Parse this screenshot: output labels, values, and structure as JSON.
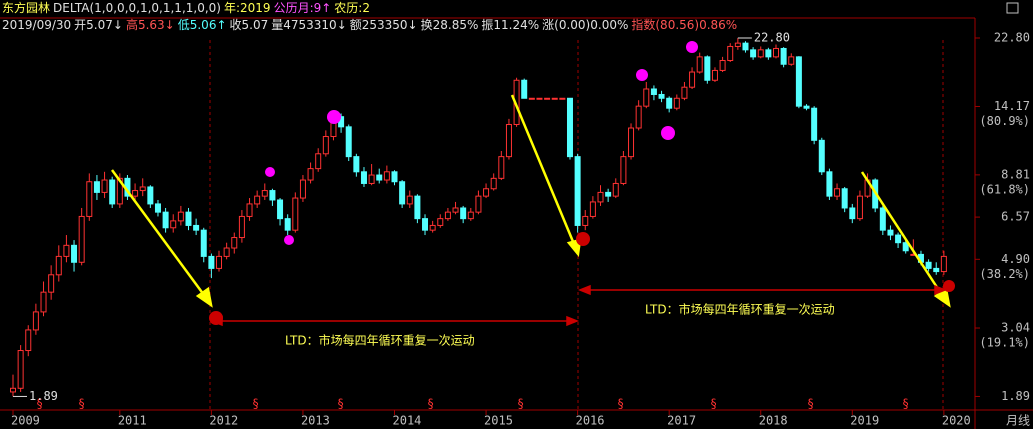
{
  "header": {
    "line1": [
      {
        "text": "东方园林",
        "color": "#ffff54"
      },
      {
        "text": "DELTA(1,0,0,0,1,0,1,1,1,0,0)",
        "color": "#e0e0e0"
      },
      {
        "text": "年:2019",
        "color": "#ffff54"
      },
      {
        "text": "公历月:9↑",
        "color": "#ff54ff"
      },
      {
        "text": "农历:2",
        "color": "#ffff54"
      }
    ],
    "line2": [
      {
        "text": "2019/09/30",
        "color": "#e0e0e0"
      },
      {
        "text": "开5.07↓",
        "color": "#e0e0e0"
      },
      {
        "text": "高5.63↓",
        "color": "#ff5454"
      },
      {
        "text": "低5.06↑",
        "color": "#54ffff"
      },
      {
        "text": "收5.07",
        "color": "#e0e0e0"
      },
      {
        "text": "量4753310↓",
        "color": "#e0e0e0"
      },
      {
        "text": "额253350↓",
        "color": "#e0e0e0"
      },
      {
        "text": "换28.85%",
        "color": "#e0e0e0"
      },
      {
        "text": "振11.24%",
        "color": "#e0e0e0"
      },
      {
        "text": "涨(0.00)0.00%",
        "color": "#e0e0e0"
      },
      {
        "text": "指数(80.56)0.86%",
        "color": "#ff5454"
      }
    ]
  },
  "chart_data": {
    "type": "candlestick",
    "log_scale": true,
    "up_color": "#ff3232",
    "down_color": "#54ffff",
    "ylim": [
      1.72,
      26.2
    ],
    "yticks": [
      {
        "value": 22.8,
        "label": "22.80"
      },
      14.17,
      8.81,
      6.57,
      {
        "value": 4.9,
        "label": "4.90"
      },
      3.04,
      1.89
    ],
    "fib_labels": [
      {
        "value": 14.17,
        "label": "(80.9%)"
      },
      {
        "value": 8.81,
        "label": "(61.8%)"
      },
      {
        "value": 4.9,
        "label": "(38.2%)"
      },
      {
        "value": 3.04,
        "label": "(19.1%)"
      }
    ],
    "max_label": {
      "value": 22.8,
      "label": "22.80"
    },
    "min_label": 1.89,
    "period_label": "月线",
    "dividend_symbol": "§",
    "annotations": [
      {
        "text": "LTD：市场每四年循环重复一次运动"
      },
      {
        "text": "LTD：市场每四年循环重复一次运动"
      }
    ],
    "categories": [
      "2009",
      null,
      null,
      null,
      null,
      null,
      null,
      null,
      null,
      null,
      null,
      null,
      null,
      null,
      "2011",
      null,
      null,
      null,
      null,
      null,
      null,
      null,
      null,
      null,
      null,
      null,
      "2012",
      null,
      null,
      null,
      null,
      null,
      null,
      null,
      null,
      null,
      null,
      null,
      "2013",
      null,
      null,
      null,
      null,
      null,
      null,
      null,
      null,
      null,
      null,
      null,
      "2014",
      null,
      null,
      null,
      null,
      null,
      null,
      null,
      null,
      null,
      null,
      null,
      "2015",
      null,
      null,
      null,
      null,
      null,
      null,
      null,
      null,
      null,
      null,
      null,
      "2016",
      null,
      null,
      null,
      null,
      null,
      null,
      null,
      null,
      null,
      null,
      null,
      "2017",
      null,
      null,
      null,
      null,
      null,
      null,
      null,
      null,
      null,
      null,
      null,
      "2018",
      null,
      null,
      null,
      null,
      null,
      null,
      null,
      null,
      null,
      null,
      null,
      "2019",
      null,
      null,
      null,
      null,
      null,
      null,
      null,
      null,
      null,
      null,
      null,
      "2020"
    ],
    "ohlc": [
      [
        1.95,
        2.2,
        1.89,
        2.0
      ],
      [
        2.0,
        2.7,
        1.95,
        2.6
      ],
      [
        2.6,
        3.1,
        2.5,
        3.0
      ],
      [
        3.0,
        3.6,
        2.9,
        3.4
      ],
      [
        3.4,
        4.2,
        3.3,
        3.9
      ],
      [
        3.9,
        4.7,
        3.7,
        4.4
      ],
      [
        4.4,
        5.4,
        4.2,
        5.0
      ],
      [
        5.0,
        5.8,
        4.8,
        5.4
      ],
      [
        5.4,
        5.6,
        4.5,
        4.8
      ],
      [
        4.8,
        7.0,
        4.7,
        6.6
      ],
      [
        6.6,
        8.9,
        6.4,
        8.4
      ],
      [
        8.4,
        8.8,
        7.4,
        7.8
      ],
      [
        7.8,
        9.0,
        7.5,
        8.5
      ],
      [
        8.5,
        8.7,
        7.0,
        7.2
      ],
      [
        7.2,
        8.9,
        7.0,
        8.6
      ],
      [
        8.6,
        8.8,
        7.4,
        7.6
      ],
      [
        7.6,
        8.3,
        7.3,
        7.9
      ],
      [
        7.9,
        8.6,
        7.6,
        8.1
      ],
      [
        8.1,
        8.2,
        7.0,
        7.2
      ],
      [
        7.2,
        7.4,
        6.6,
        6.8
      ],
      [
        6.8,
        7.0,
        5.9,
        6.1
      ],
      [
        6.1,
        6.7,
        5.9,
        6.4
      ],
      [
        6.4,
        7.1,
        6.2,
        6.8
      ],
      [
        6.8,
        7.0,
        6.0,
        6.2
      ],
      [
        6.2,
        6.5,
        5.8,
        6.0
      ],
      [
        6.0,
        6.1,
        4.8,
        5.0
      ],
      [
        5.0,
        5.1,
        4.3,
        4.6
      ],
      [
        4.6,
        5.2,
        4.5,
        5.0
      ],
      [
        5.0,
        5.5,
        4.9,
        5.3
      ],
      [
        5.3,
        5.9,
        5.1,
        5.7
      ],
      [
        5.7,
        6.9,
        5.5,
        6.6
      ],
      [
        6.6,
        7.5,
        6.4,
        7.2
      ],
      [
        7.2,
        7.9,
        7.0,
        7.6
      ],
      [
        7.6,
        8.3,
        7.4,
        7.9
      ],
      [
        7.9,
        8.0,
        7.1,
        7.4
      ],
      [
        7.4,
        7.5,
        6.2,
        6.5
      ],
      [
        6.5,
        6.7,
        5.8,
        6.0
      ],
      [
        6.0,
        7.8,
        5.9,
        7.5
      ],
      [
        7.5,
        8.8,
        7.3,
        8.5
      ],
      [
        8.5,
        9.6,
        8.3,
        9.2
      ],
      [
        9.2,
        10.6,
        9.0,
        10.2
      ],
      [
        10.2,
        12.0,
        10.0,
        11.5
      ],
      [
        11.5,
        13.8,
        11.2,
        13.2
      ],
      [
        13.2,
        13.5,
        11.8,
        12.3
      ],
      [
        12.3,
        12.5,
        9.7,
        10.0
      ],
      [
        10.0,
        10.2,
        8.7,
        9.0
      ],
      [
        9.0,
        9.3,
        8.1,
        8.3
      ],
      [
        8.3,
        9.5,
        8.2,
        8.8
      ],
      [
        8.8,
        9.2,
        8.3,
        8.5
      ],
      [
        8.5,
        9.4,
        8.3,
        9.0
      ],
      [
        9.0,
        9.1,
        8.2,
        8.4
      ],
      [
        8.4,
        8.5,
        7.0,
        7.2
      ],
      [
        7.2,
        7.9,
        7.0,
        7.6
      ],
      [
        7.6,
        7.7,
        6.3,
        6.5
      ],
      [
        6.5,
        6.7,
        5.8,
        6.0
      ],
      [
        6.0,
        6.4,
        5.9,
        6.2
      ],
      [
        6.2,
        6.7,
        6.1,
        6.5
      ],
      [
        6.5,
        7.0,
        6.4,
        6.8
      ],
      [
        6.8,
        7.3,
        6.7,
        7.0
      ],
      [
        7.0,
        7.1,
        6.3,
        6.5
      ],
      [
        6.5,
        7.0,
        6.4,
        6.8
      ],
      [
        6.8,
        7.9,
        6.7,
        7.6
      ],
      [
        7.6,
        8.3,
        7.5,
        8.0
      ],
      [
        8.0,
        8.9,
        7.9,
        8.6
      ],
      [
        8.6,
        10.4,
        8.5,
        10.0
      ],
      [
        10.0,
        13.0,
        9.8,
        12.5
      ],
      [
        12.5,
        17.3,
        12.3,
        17.0
      ],
      [
        17.0,
        17.2,
        15.0,
        15.0
      ],
      [
        15.0,
        15.0,
        15.0,
        15.0
      ],
      [
        15.0,
        15.0,
        15.0,
        15.0
      ],
      [
        15.0,
        15.0,
        15.0,
        15.0
      ],
      [
        15.0,
        15.0,
        15.0,
        15.0
      ],
      [
        15.0,
        15.0,
        15.0,
        15.0
      ],
      [
        15.0,
        15.0,
        9.8,
        10.0
      ],
      [
        10.0,
        10.2,
        5.9,
        6.2
      ],
      [
        6.2,
        6.9,
        6.0,
        6.6
      ],
      [
        6.6,
        7.6,
        6.5,
        7.3
      ],
      [
        7.3,
        8.2,
        7.1,
        7.8
      ],
      [
        7.8,
        8.0,
        7.3,
        7.6
      ],
      [
        7.6,
        8.6,
        7.5,
        8.3
      ],
      [
        8.3,
        10.4,
        8.2,
        10.0
      ],
      [
        10.0,
        12.6,
        9.8,
        12.2
      ],
      [
        12.2,
        14.8,
        12.0,
        14.2
      ],
      [
        14.2,
        16.8,
        14.0,
        16.0
      ],
      [
        16.0,
        16.4,
        14.8,
        15.4
      ],
      [
        15.4,
        15.8,
        14.6,
        15.0
      ],
      [
        15.0,
        15.2,
        13.6,
        14.0
      ],
      [
        14.0,
        15.4,
        13.8,
        15.0
      ],
      [
        15.0,
        16.8,
        14.8,
        16.2
      ],
      [
        16.2,
        18.6,
        16.0,
        18.0
      ],
      [
        18.0,
        20.6,
        17.8,
        20.0
      ],
      [
        20.0,
        20.2,
        16.6,
        17.0
      ],
      [
        17.0,
        18.6,
        16.8,
        18.2
      ],
      [
        18.2,
        20.0,
        18.0,
        19.5
      ],
      [
        19.5,
        22.0,
        19.3,
        21.5
      ],
      [
        21.5,
        22.8,
        21.0,
        22.0
      ],
      [
        22.0,
        22.3,
        20.6,
        21.0
      ],
      [
        21.0,
        21.4,
        19.6,
        20.0
      ],
      [
        20.0,
        21.5,
        19.8,
        21.0
      ],
      [
        21.0,
        21.3,
        19.6,
        20.0
      ],
      [
        20.0,
        21.8,
        19.8,
        21.2
      ],
      [
        21.2,
        21.4,
        18.6,
        19.0
      ],
      [
        19.0,
        20.5,
        18.8,
        20.0
      ],
      [
        20.0,
        20.1,
        14.0,
        14.2
      ],
      [
        14.2,
        14.4,
        13.8,
        14.0
      ],
      [
        14.0,
        14.2,
        10.9,
        11.2
      ],
      [
        11.2,
        11.4,
        8.8,
        9.0
      ],
      [
        9.0,
        9.2,
        7.4,
        7.6
      ],
      [
        7.6,
        8.3,
        7.4,
        8.0
      ],
      [
        8.0,
        8.1,
        6.8,
        7.0
      ],
      [
        7.0,
        7.2,
        6.3,
        6.5
      ],
      [
        6.5,
        7.9,
        6.4,
        7.6
      ],
      [
        7.6,
        8.9,
        7.5,
        8.5
      ],
      [
        8.5,
        8.6,
        6.8,
        7.0
      ],
      [
        7.0,
        7.1,
        5.8,
        6.0
      ],
      [
        6.0,
        6.2,
        5.6,
        5.8
      ],
      [
        5.8,
        5.9,
        5.3,
        5.5
      ],
      [
        5.5,
        5.6,
        5.1,
        5.2
      ],
      [
        5.07,
        5.63,
        5.06,
        5.07
      ],
      [
        5.07,
        5.2,
        4.7,
        4.8
      ],
      [
        4.8,
        4.9,
        4.5,
        4.6
      ],
      [
        4.6,
        4.8,
        4.4,
        4.5
      ],
      [
        4.5,
        5.2,
        4.4,
        5.0
      ]
    ]
  }
}
